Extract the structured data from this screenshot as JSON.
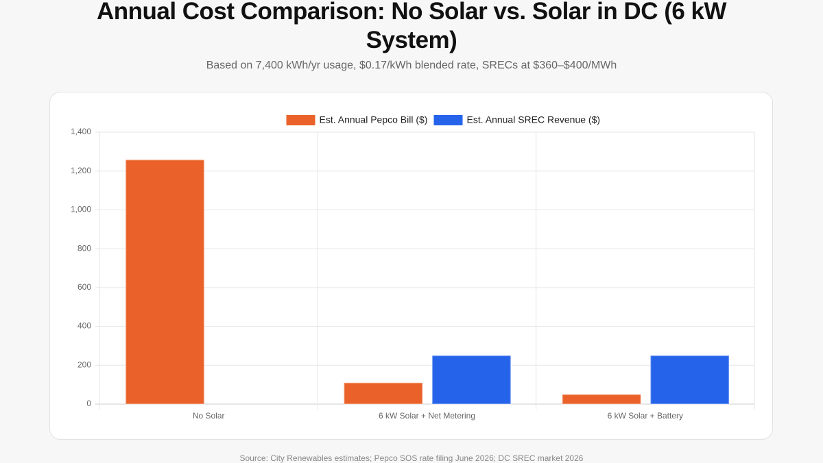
{
  "chart_data": {
    "type": "bar",
    "title": "Annual Cost Comparison: No Solar vs. Solar in DC (6 kW System)",
    "subtitle": "Based on 7,400 kWh/yr usage, $0.17/kWh blended rate, SRECs at $360–$400/MWh",
    "categories": [
      "No Solar",
      "6 kW Solar + Net Metering",
      "6 kW Solar + Battery"
    ],
    "series": [
      {
        "name": "Est. Annual Pepco Bill ($)",
        "color": "#ea6229",
        "values": [
          1258,
          110,
          50
        ]
      },
      {
        "name": "Est. Annual SREC Revenue ($)",
        "color": "#2563eb",
        "values": [
          0,
          250,
          250
        ]
      }
    ],
    "ylim": [
      0,
      1400
    ],
    "yticks": [
      0,
      200,
      400,
      600,
      800,
      {
        "value": 1000,
        "label": "1,000"
      },
      {
        "value": 1200,
        "label": "1,200"
      },
      {
        "value": 1400,
        "label": "1,400"
      }
    ],
    "grid": true,
    "legend": "top",
    "source": "Source: City Renewables estimates; Pepco SOS rate filing June 2026; DC SREC market 2026"
  }
}
